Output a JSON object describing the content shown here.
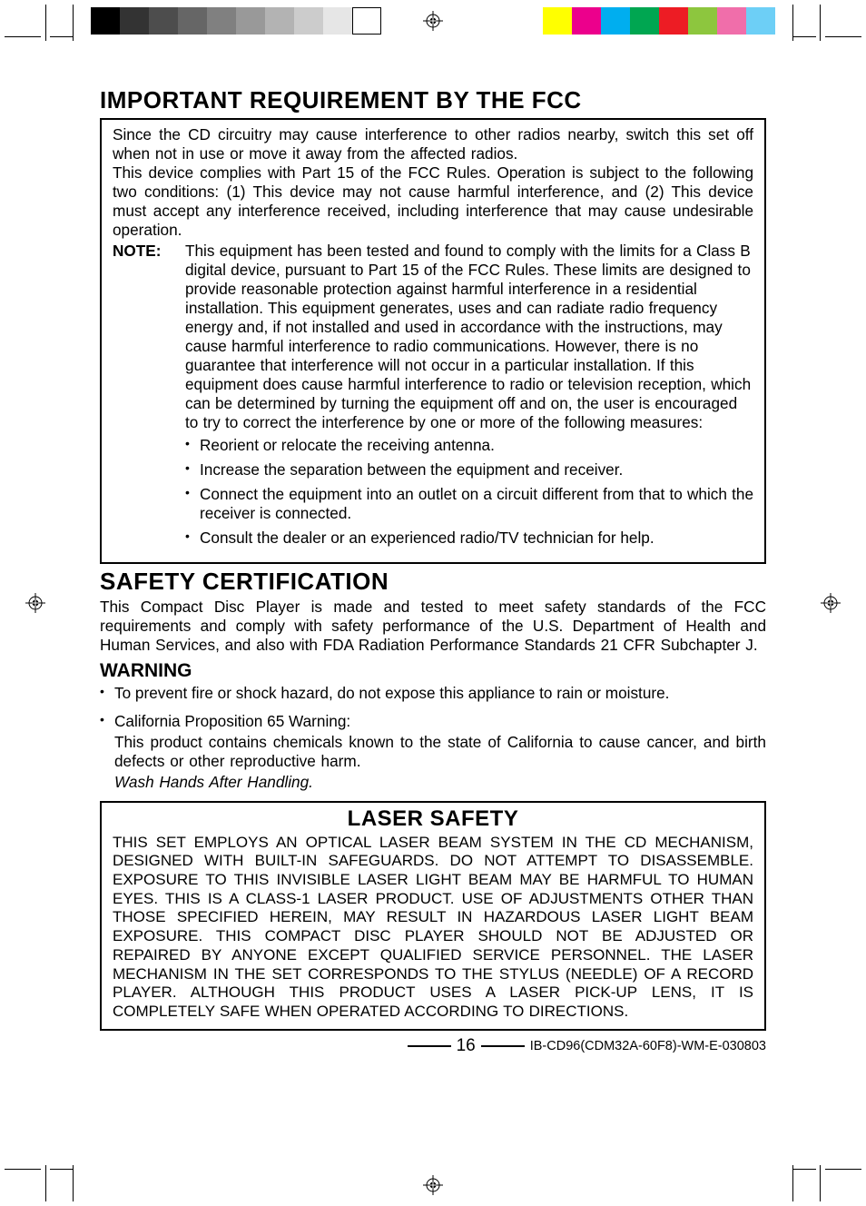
{
  "print_marks": {
    "gray_swatches": [
      "#000000",
      "#333333",
      "#4d4d4d",
      "#666666",
      "#808080",
      "#999999",
      "#b3b3b3",
      "#cccccc",
      "#e6e6e6",
      "#ffffff"
    ],
    "color_swatches": [
      "#ffff00",
      "#ec008c",
      "#00aeef",
      "#00a651",
      "#ed1c24",
      "#8dc63e",
      "#f06eaa",
      "#6dcff6"
    ]
  },
  "fcc": {
    "heading": "IMPORTANT REQUIREMENT BY THE FCC",
    "p1": "Since the CD circuitry may cause interference to other radios nearby, switch this set off when not in use or move it away from the affected radios.",
    "p2": "This device complies with Part 15 of the FCC Rules. Operation is subject to the following two conditions: (1) This device may not cause harmful interference, and (2) This device must accept any interference received, including interference that may cause undesirable operation.",
    "note_label": "NOTE:",
    "note_body": "This equipment has been tested and found to comply with the limits for a Class B digital device, pursuant to Part 15 of the FCC Rules. These limits are designed to provide reasonable protection against harmful interference in a residential installation. This equipment generates, uses and can radiate radio frequency energy and, if not installed and used in accordance with the instructions, may cause harmful interference to radio communications. However, there is no guarantee that interference will not occur in a particular installation. If this equipment does cause harmful interference to radio or television reception, which can be determined by turning the equipment off and on, the user is encouraged to try to correct the interference by one or more of the following measures:",
    "bullets": [
      "Reorient or relocate the receiving antenna.",
      "Increase the separation between the equipment and receiver.",
      "Connect the equipment into an outlet on a circuit different from that to which the receiver is connected.",
      "Consult the dealer or an experienced radio/TV technician for help."
    ]
  },
  "safety": {
    "heading": "SAFETY CERTIFICATION",
    "body": "This Compact Disc Player is made and tested to meet safety standards of the FCC requirements and comply with safety performance of the U.S. Department of Health and Human Services, and also with FDA Radiation Performance Standards 21 CFR Subchapter J."
  },
  "warning": {
    "heading": "WARNING",
    "b1": "To prevent fire or shock hazard, do not expose this appliance to rain or moisture.",
    "b2_title": "California Proposition 65 Warning:",
    "b2_body": "This product contains chemicals known to the state of California to cause cancer, and birth defects or other reproductive harm.",
    "b2_italic": "Wash Hands After Handling."
  },
  "laser": {
    "heading": "LASER SAFETY",
    "body": "THIS SET EMPLOYS AN OPTICAL LASER BEAM SYSTEM IN THE CD MECHANISM, DESIGNED WITH BUILT-IN SAFEGUARDS. DO NOT ATTEMPT TO DISASSEMBLE. EXPOSURE TO THIS INVISIBLE LASER LIGHT BEAM MAY BE HARMFUL TO HUMAN EYES. THIS IS A CLASS-1 LASER PRODUCT. USE OF ADJUSTMENTS OTHER THAN THOSE SPECIFIED HEREIN, MAY RESULT IN HAZARDOUS LASER LIGHT BEAM EXPOSURE. THIS COMPACT DISC PLAYER SHOULD NOT BE ADJUSTED OR REPAIRED BY ANYONE EXCEPT QUALIFIED SERVICE PERSONNEL. THE LASER MECHANISM IN THE SET CORRESPONDS TO THE STYLUS (NEEDLE) OF A RECORD PLAYER. ALTHOUGH THIS PRODUCT USES A LASER PICK-UP LENS, IT IS COMPLETELY SAFE WHEN OPERATED ACCORDING TO DIRECTIONS."
  },
  "footer": {
    "page_number": "16",
    "doc_id": "IB-CD96(CDM32A-60F8)-WM-E-030803"
  }
}
